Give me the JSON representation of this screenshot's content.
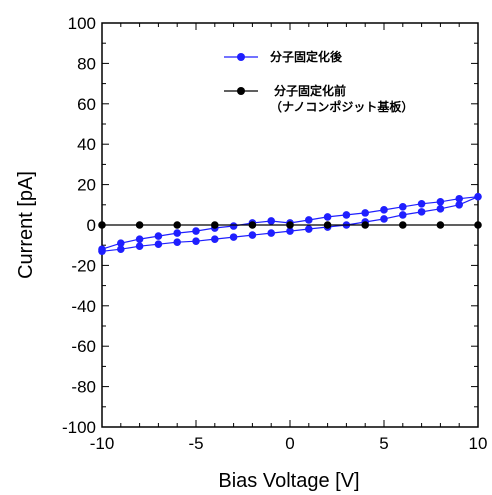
{
  "chart_data": {
    "type": "line",
    "xlabel": "Bias Voltage [V]",
    "ylabel": "Current [pA]",
    "xlim": [
      -10,
      10
    ],
    "ylim": [
      -100,
      100
    ],
    "xticks": [
      -10,
      -5,
      0,
      5,
      10
    ],
    "yticks": [
      -100,
      -80,
      -60,
      -40,
      -20,
      0,
      20,
      40,
      60,
      80,
      100
    ],
    "grid": false,
    "legend_position": "top-right, inside plot",
    "series": [
      {
        "name": "分子固定化後",
        "color": "#1f1fff",
        "x": [
          -10,
          -9,
          -8,
          -7,
          -6,
          -5,
          -4,
          -3,
          -2,
          -1,
          0,
          1,
          2,
          3,
          4,
          5,
          6,
          7,
          8,
          9,
          10,
          9,
          8,
          7,
          6,
          5,
          4,
          3,
          2,
          1,
          0,
          -1,
          -2,
          -3,
          -4,
          -5,
          -6,
          -7,
          -8,
          -9,
          -10
        ],
        "y": [
          -13,
          -12,
          -10.5,
          -9.5,
          -8.5,
          -8,
          -7,
          -6,
          -5,
          -4,
          -3,
          -2,
          -1,
          0,
          1.5,
          3,
          5,
          6.5,
          8,
          10,
          14,
          13,
          11.5,
          10.5,
          9,
          7.5,
          6,
          5,
          4,
          2.5,
          1,
          2,
          1,
          -0.5,
          -1.5,
          -3,
          -4,
          -5.5,
          -7,
          -9,
          -12
        ]
      },
      {
        "name": "分子固定化前",
        "name_line2": "（ナノコンポジット基板）",
        "color": "#000000",
        "x": [
          -10,
          -8,
          -6,
          -4,
          -2,
          0,
          2,
          4,
          6,
          8,
          10
        ],
        "y": [
          0,
          0,
          0,
          0,
          0,
          0,
          0,
          0,
          0,
          0,
          0
        ]
      }
    ]
  }
}
